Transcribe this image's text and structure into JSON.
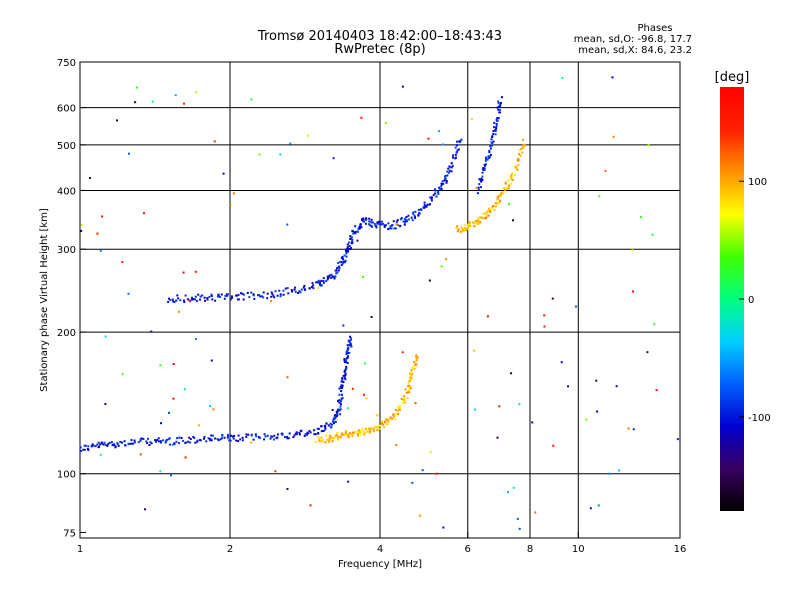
{
  "chart_data": {
    "type": "scatter",
    "title": "Tromsø 20140403 18:42:00–18:43:43",
    "subtitle": "RwPretec (8p)",
    "xlabel": "Frequency [MHz]",
    "ylabel": "Stationary phase Virtual Height [km]",
    "x_scale": "log",
    "y_scale": "log",
    "xlim": [
      1,
      16
    ],
    "ylim": [
      73,
      750
    ],
    "x_ticks": [
      {
        "value": 1,
        "label": "1"
      },
      {
        "value": 2,
        "label": "2"
      },
      {
        "value": 4,
        "label": "4"
      },
      {
        "value": 6,
        "label": "6"
      },
      {
        "value": 8,
        "label": "8"
      },
      {
        "value": 10,
        "label": "10"
      },
      {
        "value": 16,
        "label": "16"
      }
    ],
    "y_ticks": [
      {
        "value": 75,
        "label": "75"
      },
      {
        "value": 100,
        "label": "100"
      },
      {
        "value": 200,
        "label": "200"
      },
      {
        "value": 300,
        "label": "300"
      },
      {
        "value": 400,
        "label": "400"
      },
      {
        "value": 500,
        "label": "500"
      },
      {
        "value": 600,
        "label": "600"
      },
      {
        "value": 750,
        "label": "750"
      }
    ],
    "x_gridlines": [
      2,
      4,
      6,
      8,
      10
    ],
    "y_gridlines": [
      100,
      200,
      300,
      400,
      500,
      600
    ],
    "grid": true,
    "phases_title": "Phases",
    "phase_stats": [
      "mean, sd,O: -96.8, 17.7",
      "mean, sd,X:  84.6, 23.2"
    ],
    "colorbar": {
      "label": "[deg]",
      "min": -180,
      "max": 180,
      "ticks": [
        {
          "value": 100,
          "label": "100"
        },
        {
          "value": 0,
          "label": "0"
        },
        {
          "value": -100,
          "label": "-100"
        }
      ],
      "colors": [
        "#000000",
        "#3a0060",
        "#0000d0",
        "#0060ff",
        "#00d0ff",
        "#00ff80",
        "#40ff00",
        "#ffff00",
        "#ff9000",
        "#ff2000",
        "#ff0000"
      ]
    },
    "traces": [
      {
        "name_hint": "E-O",
        "phase": -100,
        "points": [
          [
            1.0,
            113
          ],
          [
            1.1,
            115
          ],
          [
            1.2,
            116
          ],
          [
            1.35,
            117
          ],
          [
            1.5,
            117
          ],
          [
            1.7,
            118
          ],
          [
            1.9,
            119
          ],
          [
            2.1,
            119
          ],
          [
            2.4,
            120
          ],
          [
            2.7,
            121
          ],
          [
            3.0,
            123
          ],
          [
            3.2,
            128
          ],
          [
            3.3,
            135
          ],
          [
            3.35,
            150
          ],
          [
            3.4,
            165
          ],
          [
            3.45,
            180
          ],
          [
            3.5,
            195
          ]
        ]
      },
      {
        "name_hint": "E-X",
        "phase": 95,
        "points": [
          [
            3.0,
            118
          ],
          [
            3.2,
            119
          ],
          [
            3.4,
            121
          ],
          [
            3.6,
            122
          ],
          [
            3.8,
            124
          ],
          [
            4.0,
            126
          ],
          [
            4.2,
            130
          ],
          [
            4.4,
            138
          ],
          [
            4.55,
            150
          ],
          [
            4.65,
            165
          ],
          [
            4.75,
            180
          ]
        ]
      },
      {
        "name_hint": "F1-O",
        "phase": -100,
        "points": [
          [
            1.5,
            235
          ],
          [
            1.7,
            236
          ],
          [
            1.9,
            237
          ],
          [
            2.1,
            238
          ],
          [
            2.4,
            240
          ],
          [
            2.7,
            245
          ],
          [
            3.0,
            252
          ],
          [
            3.2,
            262
          ],
          [
            3.35,
            280
          ],
          [
            3.45,
            300
          ],
          [
            3.55,
            325
          ],
          [
            3.7,
            345
          ],
          [
            3.9,
            340
          ],
          [
            4.2,
            335
          ],
          [
            4.5,
            345
          ],
          [
            4.8,
            360
          ],
          [
            5.1,
            385
          ],
          [
            5.4,
            420
          ],
          [
            5.6,
            460
          ],
          [
            5.8,
            520
          ]
        ]
      },
      {
        "name_hint": "F2-X",
        "phase": 95,
        "points": [
          [
            5.7,
            330
          ],
          [
            6.0,
            335
          ],
          [
            6.3,
            345
          ],
          [
            6.6,
            360
          ],
          [
            6.9,
            380
          ],
          [
            7.2,
            410
          ],
          [
            7.5,
            450
          ],
          [
            7.8,
            510
          ]
        ]
      },
      {
        "name_hint": "F2-O",
        "phase": -95,
        "points": [
          [
            6.3,
            400
          ],
          [
            6.5,
            450
          ],
          [
            6.7,
            500
          ],
          [
            6.85,
            560
          ],
          [
            7.0,
            630
          ]
        ]
      }
    ]
  }
}
